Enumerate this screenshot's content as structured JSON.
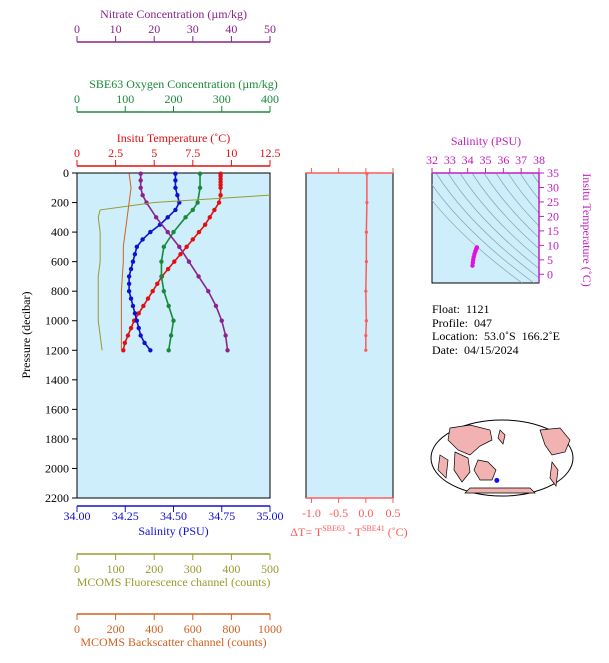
{
  "colors": {
    "nitrate": "#8b238b",
    "oxygen": "#188a3a",
    "temperature": "#e01010",
    "salinity": "#1010d0",
    "salinity_label": "#c020c0",
    "fluorescence": "#9a9a30",
    "backscatter": "#d06020",
    "panel_bg": "#cdeefa",
    "delta_t": "#ff5a5a"
  },
  "chart_data": [
    {
      "type": "line",
      "title": "",
      "ylabel": "Pressure (decibar)",
      "yticks": [
        0,
        200,
        400,
        600,
        800,
        1000,
        1200,
        1400,
        1600,
        1800,
        2000,
        2200
      ],
      "ylim": [
        0,
        2200
      ],
      "grid": false,
      "axes": [
        {
          "key": "nitrate",
          "label": "Nitrate Concentration (µm/kg)",
          "ticks": [
            0,
            10,
            20,
            30,
            40,
            50
          ],
          "lim": [
            0,
            50
          ],
          "position": "top-1"
        },
        {
          "key": "oxygen",
          "label": "SBE63 Oxygen Concentration (µm/kg)",
          "ticks": [
            0,
            100,
            200,
            300,
            400
          ],
          "lim": [
            0,
            400
          ],
          "position": "top-2"
        },
        {
          "key": "temperature",
          "label": "Insitu Temperature (˚C)",
          "ticks": [
            "0",
            "2.5",
            "5",
            "7.5",
            "10",
            "12.5"
          ],
          "lim": [
            0,
            12.5
          ],
          "position": "top-3"
        },
        {
          "key": "salinity",
          "label": "Salinity (PSU)",
          "ticks": [
            "34.00",
            "34.25",
            "34.50",
            "34.75",
            "35.00"
          ],
          "lim": [
            34.0,
            35.0
          ],
          "position": "bottom-1"
        },
        {
          "key": "fluorescence",
          "label": "MCOMS Fluorescence channel (counts)",
          "ticks": [
            0,
            100,
            200,
            300,
            400,
            500
          ],
          "lim": [
            0,
            500
          ],
          "position": "bottom-2"
        },
        {
          "key": "backscatter",
          "label": "MCOMS Backscatter channel (counts)",
          "ticks": [
            0,
            200,
            400,
            600,
            800,
            1000
          ],
          "lim": [
            0,
            1000
          ],
          "position": "bottom-3"
        }
      ],
      "series": [
        {
          "key": "temperature",
          "pressure": [
            5,
            20,
            40,
            60,
            80,
            100,
            150,
            200,
            250,
            300,
            350,
            400,
            450,
            500,
            550,
            600,
            650,
            700,
            750,
            800,
            850,
            900,
            950,
            1000,
            1050,
            1100,
            1150,
            1200
          ],
          "values": [
            9.3,
            9.3,
            9.3,
            9.3,
            9.3,
            9.3,
            9.3,
            9.2,
            8.9,
            8.6,
            8.3,
            7.9,
            7.5,
            7.1,
            6.7,
            6.3,
            5.9,
            5.5,
            5.2,
            4.9,
            4.6,
            4.3,
            4.0,
            3.7,
            3.5,
            3.3,
            3.1,
            3.0
          ]
        },
        {
          "key": "salinity",
          "pressure": [
            5,
            50,
            100,
            150,
            200,
            250,
            300,
            350,
            400,
            450,
            500,
            550,
            600,
            650,
            700,
            750,
            800,
            850,
            900,
            950,
            1000,
            1050,
            1100,
            1150,
            1200
          ],
          "values": [
            34.51,
            34.51,
            34.51,
            34.52,
            34.53,
            34.51,
            34.47,
            34.43,
            34.38,
            34.34,
            34.31,
            34.3,
            34.29,
            34.28,
            34.27,
            34.27,
            34.27,
            34.28,
            34.29,
            34.3,
            34.31,
            34.32,
            34.33,
            34.35,
            34.38
          ]
        },
        {
          "key": "oxygen",
          "pressure": [
            5,
            100,
            200,
            250,
            300,
            400,
            500,
            600,
            700,
            800,
            900,
            1000,
            1100,
            1200
          ],
          "values": [
            255,
            255,
            250,
            240,
            225,
            200,
            180,
            175,
            175,
            180,
            190,
            200,
            195,
            190
          ]
        },
        {
          "key": "nitrate",
          "pressure": [
            5,
            50,
            100,
            150,
            200,
            300,
            400,
            500,
            600,
            700,
            800,
            900,
            1000,
            1100,
            1200
          ],
          "values": [
            16.5,
            16.5,
            16.5,
            17,
            18,
            20.5,
            23.5,
            26.5,
            29,
            31.5,
            34,
            36,
            37.5,
            38.5,
            39
          ]
        },
        {
          "key": "fluorescence",
          "pressure": [
            150,
            200,
            250,
            300,
            400,
            500,
            600,
            700,
            800,
            900,
            1000,
            1100,
            1200
          ],
          "values": [
            500,
            200,
            60,
            55,
            60,
            60,
            60,
            55,
            55,
            55,
            55,
            60,
            65
          ]
        },
        {
          "key": "backscatter",
          "pressure": [
            5,
            100,
            200,
            300,
            400,
            500,
            600,
            700,
            800,
            900,
            1000,
            1100,
            1200
          ],
          "values": [
            270,
            280,
            270,
            260,
            250,
            240,
            240,
            235,
            230,
            230,
            230,
            230,
            230
          ]
        }
      ]
    },
    {
      "type": "line",
      "xlabel": "ΔT= T",
      "xlabel_sup1": "SBE63",
      "xlabel_mid": " - T",
      "xlabel_sup2": "SBE41",
      "xlabel_end": " (˚C)",
      "xticks": [
        "-1.0",
        "-0.5",
        "0.0",
        "0.5"
      ],
      "xlim": [
        -1.1,
        0.5
      ],
      "series": [
        {
          "name": "",
          "pressure": [
            5,
            200,
            400,
            600,
            800,
            1000,
            1100,
            1200
          ],
          "values": [
            0.02,
            0.02,
            0.01,
            0.01,
            0.0,
            0.01,
            0.0,
            0.0
          ]
        }
      ]
    },
    {
      "type": "scatter",
      "title": "Salinity (PSU)",
      "xticks": [
        32,
        33,
        34,
        35,
        36,
        37,
        38
      ],
      "xlim": [
        32,
        38
      ],
      "ylabel": "Insitu Temperature (˚C)",
      "yticks": [
        0,
        5,
        10,
        15,
        20,
        25,
        30,
        35
      ],
      "ylim": [
        -3,
        35
      ],
      "points": {
        "x": [
          34.27,
          34.29,
          34.31,
          34.34,
          34.38,
          34.43,
          34.47,
          34.51,
          34.52
        ],
        "y": [
          3.0,
          4.0,
          5.0,
          6.0,
          7.0,
          7.9,
          8.6,
          9.2,
          9.3
        ]
      }
    }
  ],
  "info": {
    "float": "Float:  1121",
    "profile": "Profile:  047",
    "location": "Location:  53.0˚S  166.2˚E",
    "date": "Date:  04/15/2024"
  },
  "map": {
    "marker_lon": 166.2,
    "marker_lat": -53.0
  }
}
